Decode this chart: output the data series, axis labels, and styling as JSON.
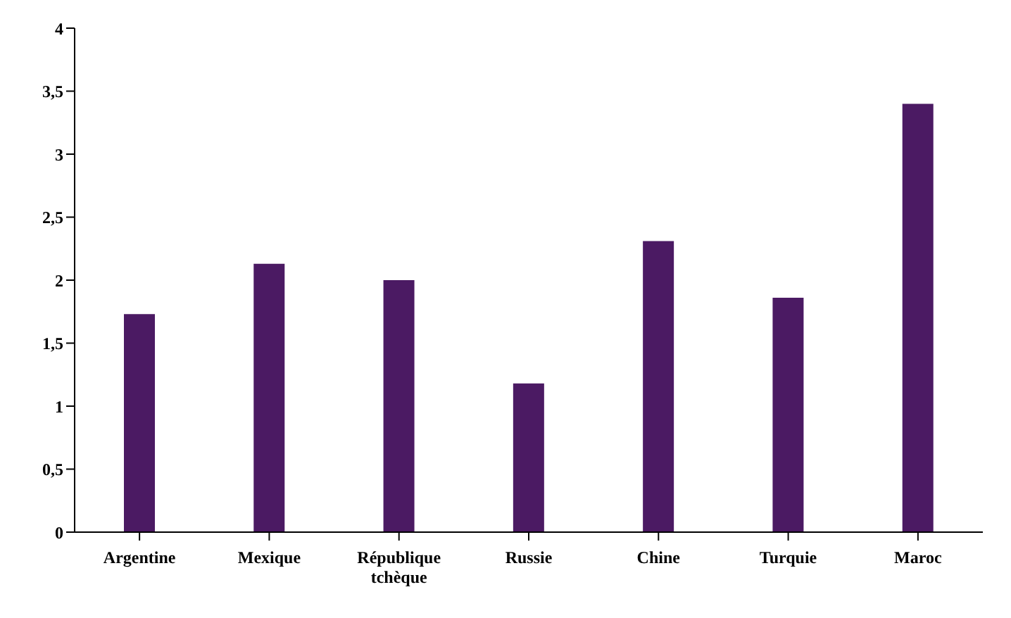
{
  "chart_data": {
    "type": "bar",
    "categories": [
      "Argentine",
      "Mexique",
      "République tchèque",
      "Russie",
      "Chine",
      "Turquie",
      "Maroc"
    ],
    "values": [
      1.73,
      2.13,
      2.0,
      1.18,
      2.31,
      1.86,
      3.4
    ],
    "color": "#4b1a63",
    "ylim": [
      0,
      4
    ],
    "yticks": [
      0,
      {
        "value": 0.5,
        "label": "0,5"
      },
      1,
      {
        "value": 1.5,
        "label": "1,5"
      },
      2,
      {
        "value": 2.5,
        "label": "2,5"
      },
      3,
      {
        "value": 3.5,
        "label": "3,5"
      },
      4
    ],
    "grid": false,
    "legend": false
  }
}
